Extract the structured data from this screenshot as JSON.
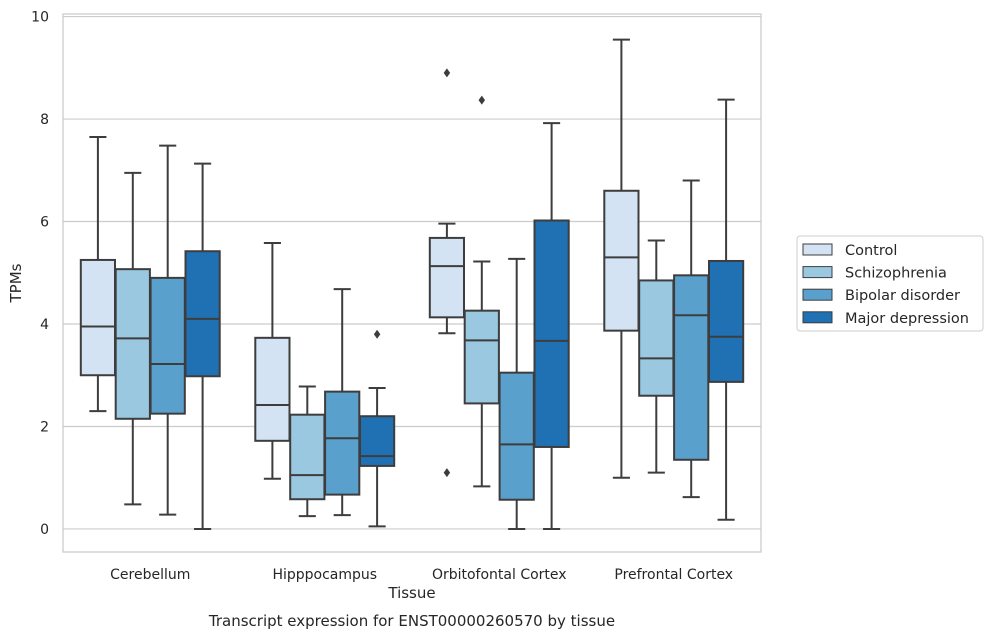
{
  "chart_data": {
    "type": "box",
    "xlabel": "Tissue",
    "ylabel": "TPMs",
    "caption": "Transcript expression for ENST00000260570 by tissue",
    "ylim": [
      -0.45,
      10.05
    ],
    "yticks": [
      0,
      2,
      4,
      6,
      8,
      10
    ],
    "grid": "horizontal",
    "legend_position": "right",
    "categories": [
      "Cerebellum",
      "Hipppocampus",
      "Orbitofontal Cortex",
      "Prefrontal Cortex"
    ],
    "series": [
      {
        "name": "Control",
        "color": "#d3e3f3",
        "boxes": [
          {
            "whisker_low": 2.3,
            "q1": 3.0,
            "median": 3.95,
            "q3": 5.25,
            "whisker_high": 7.65,
            "outliers": []
          },
          {
            "whisker_low": 0.98,
            "q1": 1.72,
            "median": 2.42,
            "q3": 3.73,
            "whisker_high": 5.58,
            "outliers": []
          },
          {
            "whisker_low": 3.82,
            "q1": 4.13,
            "median": 5.13,
            "q3": 5.68,
            "whisker_high": 5.96,
            "outliers": [
              8.9,
              1.1
            ]
          },
          {
            "whisker_low": 1.0,
            "q1": 3.87,
            "median": 5.3,
            "q3": 6.6,
            "whisker_high": 9.55,
            "outliers": []
          }
        ]
      },
      {
        "name": "Schizophrenia",
        "color": "#9ac8e0",
        "boxes": [
          {
            "whisker_low": 0.48,
            "q1": 2.15,
            "median": 3.72,
            "q3": 5.07,
            "whisker_high": 6.95,
            "outliers": []
          },
          {
            "whisker_low": 0.25,
            "q1": 0.58,
            "median": 1.05,
            "q3": 2.23,
            "whisker_high": 2.78,
            "outliers": []
          },
          {
            "whisker_low": 0.83,
            "q1": 2.45,
            "median": 3.68,
            "q3": 4.26,
            "whisker_high": 5.22,
            "outliers": [
              8.37
            ]
          },
          {
            "whisker_low": 1.1,
            "q1": 2.6,
            "median": 3.33,
            "q3": 4.85,
            "whisker_high": 5.63,
            "outliers": []
          }
        ]
      },
      {
        "name": "Bipolar disorder",
        "color": "#5aa0cd",
        "boxes": [
          {
            "whisker_low": 0.28,
            "q1": 2.25,
            "median": 3.22,
            "q3": 4.9,
            "whisker_high": 7.48,
            "outliers": []
          },
          {
            "whisker_low": 0.27,
            "q1": 0.67,
            "median": 1.77,
            "q3": 2.68,
            "whisker_high": 4.68,
            "outliers": []
          },
          {
            "whisker_low": 0.0,
            "q1": 0.57,
            "median": 1.65,
            "q3": 3.05,
            "whisker_high": 5.27,
            "outliers": []
          },
          {
            "whisker_low": 0.62,
            "q1": 1.35,
            "median": 4.17,
            "q3": 4.95,
            "whisker_high": 6.8,
            "outliers": []
          }
        ]
      },
      {
        "name": "Major depression",
        "color": "#2070b4",
        "boxes": [
          {
            "whisker_low": 0.0,
            "q1": 2.98,
            "median": 4.1,
            "q3": 5.42,
            "whisker_high": 7.13,
            "outliers": []
          },
          {
            "whisker_low": 0.05,
            "q1": 1.23,
            "median": 1.42,
            "q3": 2.2,
            "whisker_high": 2.75,
            "outliers": [
              3.8
            ]
          },
          {
            "whisker_low": 0.0,
            "q1": 1.6,
            "median": 3.67,
            "q3": 6.02,
            "whisker_high": 7.92,
            "outliers": []
          },
          {
            "whisker_low": 0.18,
            "q1": 2.87,
            "median": 3.75,
            "q3": 5.23,
            "whisker_high": 8.38,
            "outliers": []
          }
        ]
      }
    ]
  }
}
